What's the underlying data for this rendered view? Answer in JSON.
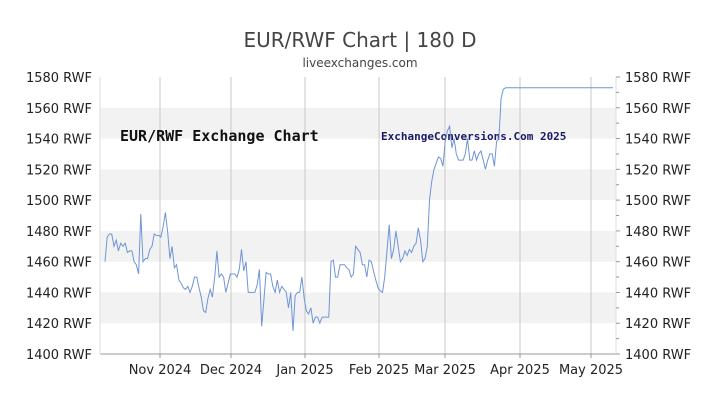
{
  "chart_data": {
    "type": "line",
    "title": "EUR/RWF Chart | 180 D",
    "subtitle": "liveexchanges.com",
    "watermarks": [
      "EUR/RWF Exchange Chart",
      "ExchangeConversions.Com 2025"
    ],
    "ylim": [
      1400,
      1580
    ],
    "y_ticks": [
      1400,
      1420,
      1440,
      1460,
      1480,
      1500,
      1520,
      1540,
      1560,
      1580
    ],
    "y_tick_labels": [
      "1400 RWF",
      "1420 RWF",
      "1440 RWF",
      "1460 RWF",
      "1480 RWF",
      "1500 RWF",
      "1520 RWF",
      "1540 RWF",
      "1560 RWF",
      "1580 RWF"
    ],
    "x_tick_labels": [
      "Nov 2024",
      "Dec 2024",
      "Jan 2025",
      "Feb 2025",
      "Mar 2025",
      "Apr 2025",
      "May 2025"
    ],
    "grid": "alternating horizontal bands, vertical lines at month starts",
    "line_color": "#6f95d6",
    "series": [
      {
        "values": [
          1460,
          1476,
          1478,
          1478,
          1470,
          1474,
          1467,
          1472,
          1470,
          1472,
          1466,
          1467,
          1467,
          1460,
          1458,
          1452,
          1491,
          1460,
          1462,
          1462,
          1468,
          1470,
          1478,
          1477,
          1477,
          1476,
          1483,
          1492,
          1479,
          1462,
          1470,
          1456,
          1458,
          1448,
          1446,
          1443,
          1442,
          1444,
          1440,
          1444,
          1450,
          1450,
          1443,
          1437,
          1428,
          1427,
          1436,
          1442,
          1437,
          1450,
          1467,
          1450,
          1452,
          1450,
          1440,
          1446,
          1452,
          1452,
          1452,
          1450,
          1455,
          1468,
          1454,
          1460,
          1440,
          1440,
          1440,
          1440,
          1445,
          1455,
          1418,
          1435,
          1453,
          1452,
          1452,
          1444,
          1440,
          1448,
          1440,
          1444,
          1442,
          1440,
          1430,
          1440,
          1415,
          1438,
          1440,
          1440,
          1450,
          1436,
          1428,
          1426,
          1430,
          1420,
          1424,
          1424,
          1420,
          1424,
          1424,
          1424,
          1424,
          1460,
          1461,
          1450,
          1450,
          1458,
          1458,
          1458,
          1456,
          1455,
          1450,
          1452,
          1470,
          1468,
          1466,
          1458,
          1458,
          1450,
          1461,
          1460,
          1454,
          1448,
          1443,
          1441,
          1440,
          1450,
          1467,
          1484,
          1462,
          1468,
          1480,
          1470,
          1460,
          1462,
          1467,
          1464,
          1468,
          1466,
          1470,
          1472,
          1482,
          1474,
          1460,
          1462,
          1470,
          1500,
          1512,
          1520,
          1524,
          1528,
          1527,
          1522,
          1538,
          1545,
          1548,
          1534,
          1540,
          1530,
          1526,
          1526,
          1526,
          1530,
          1540,
          1526,
          1526,
          1532,
          1526,
          1530,
          1532,
          1526,
          1520,
          1526,
          1530,
          1530,
          1522,
          1538,
          1540,
          1566,
          1572,
          1573,
          1573,
          1573,
          1573,
          1573,
          1573,
          1573,
          1573,
          1573,
          1573,
          1573,
          1573,
          1573,
          1573,
          1573,
          1573,
          1573,
          1573,
          1573,
          1573,
          1573,
          1573,
          1573,
          1573,
          1573,
          1573,
          1573,
          1573,
          1573,
          1573,
          1573,
          1573,
          1573,
          1573,
          1573,
          1573,
          1573,
          1573,
          1573,
          1573,
          1573,
          1573,
          1573,
          1573,
          1573,
          1573,
          1573,
          1573,
          1573
        ]
      }
    ]
  }
}
